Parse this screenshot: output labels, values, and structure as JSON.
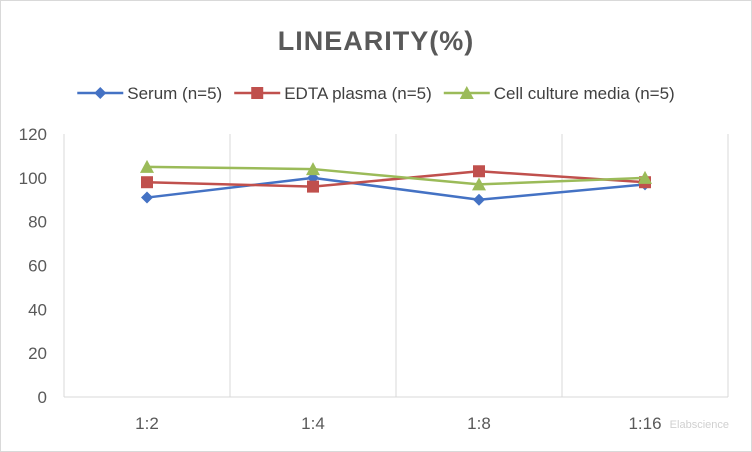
{
  "chart_data": {
    "type": "line",
    "title": "LINEARITY(%)",
    "categories": [
      "1:2",
      "1:4",
      "1:8",
      "1:16"
    ],
    "ylim": [
      0,
      120
    ],
    "yticks": [
      0,
      20,
      40,
      60,
      80,
      100,
      120
    ],
    "grid": "vertical",
    "legend_position": "top",
    "series": [
      {
        "name": "Serum (n=5)",
        "values": [
          91,
          100,
          90,
          97
        ],
        "color": "#4472c4",
        "marker": "diamond"
      },
      {
        "name": "EDTA plasma (n=5)",
        "values": [
          98,
          96,
          103,
          98
        ],
        "color": "#c0504d",
        "marker": "square"
      },
      {
        "name": "Cell culture media (n=5)",
        "values": [
          105,
          104,
          97,
          100
        ],
        "color": "#9bbb59",
        "marker": "triangle"
      }
    ]
  },
  "watermark": "Elabscience"
}
